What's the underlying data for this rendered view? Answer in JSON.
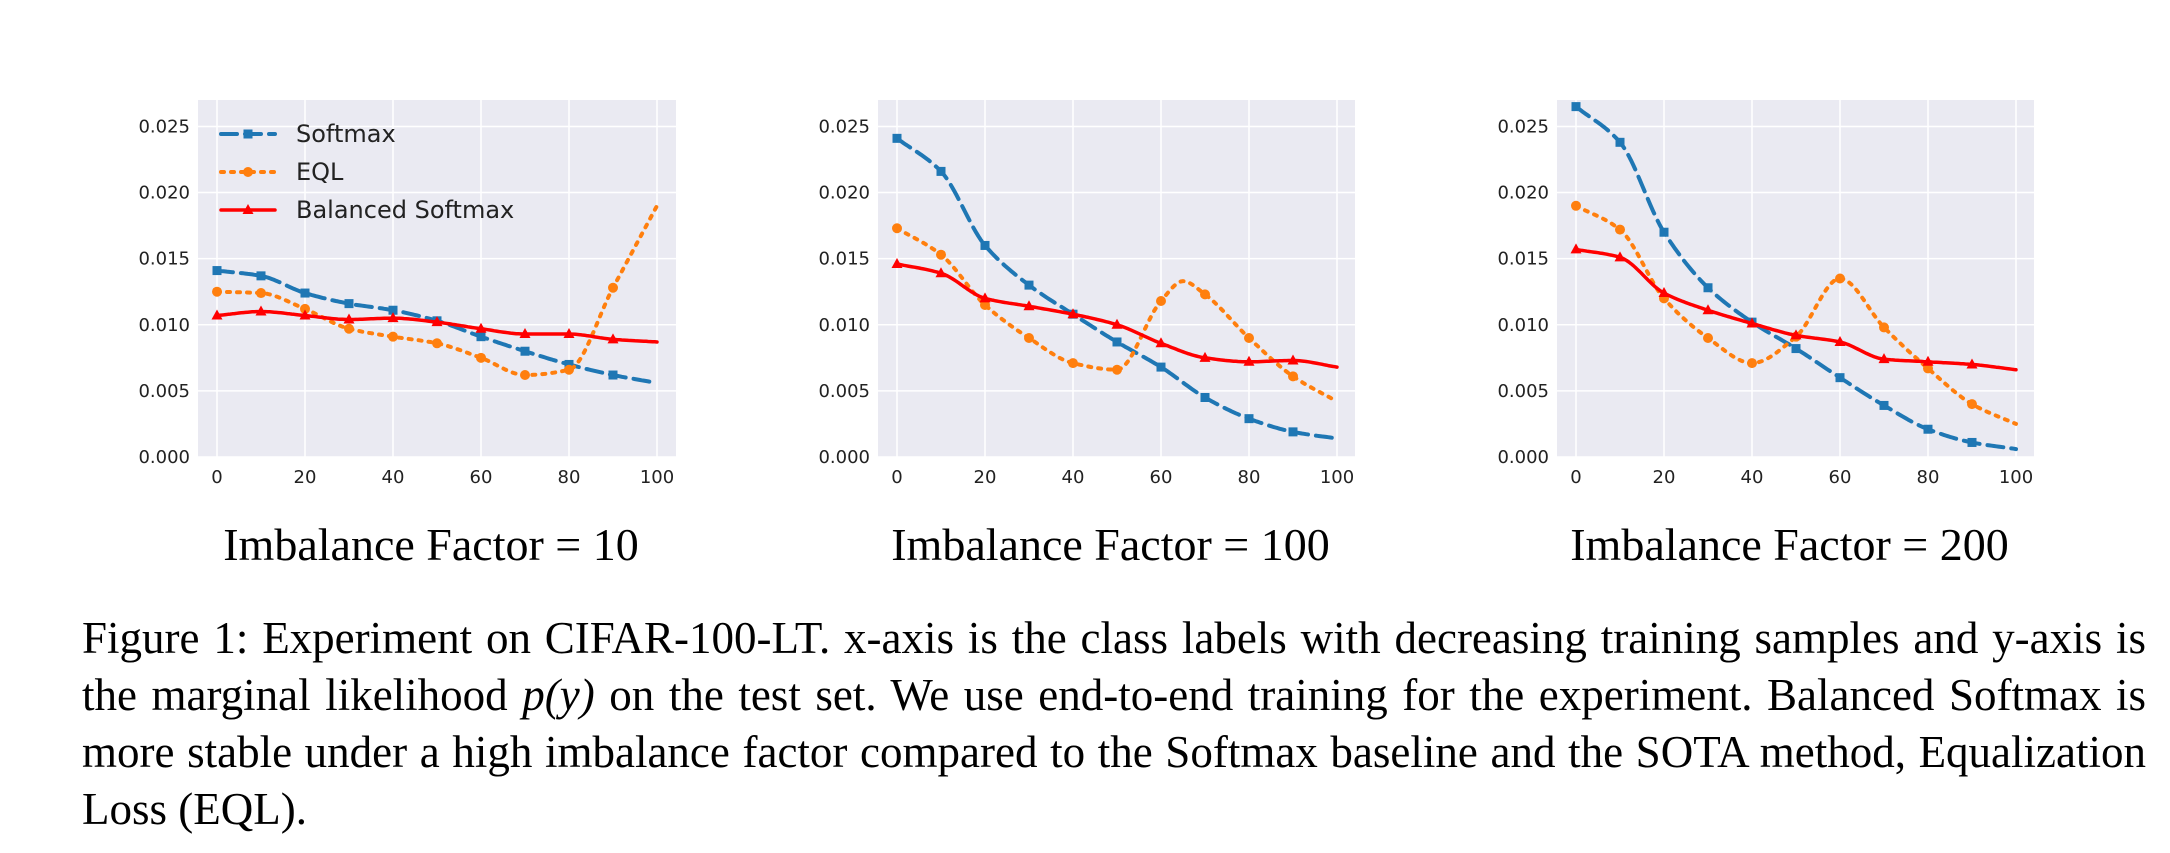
{
  "legend": [
    "Softmax",
    "EQL",
    "Balanced Softmax"
  ],
  "colors": {
    "softmax": "#1f77b4",
    "eql": "#ff7f0e",
    "balanced": "#ff0000",
    "plot_bg": "#eaeaf2",
    "grid": "#ffffff"
  },
  "chart_data": [
    {
      "type": "line",
      "title": "Imbalance Factor = 10",
      "xlabel": "",
      "ylabel": "",
      "xlim": [
        0,
        100
      ],
      "ylim": [
        0,
        0.027
      ],
      "xticks": [
        "0",
        "20",
        "40",
        "60",
        "80",
        "100"
      ],
      "yticks": [
        "0.000",
        "0.005",
        "0.010",
        "0.015",
        "0.020",
        "0.025"
      ],
      "grid": true,
      "legend_position": "top-left",
      "marker_x": [
        0,
        10,
        20,
        30,
        40,
        50,
        60,
        70,
        80,
        90
      ],
      "series": [
        {
          "name": "Softmax",
          "style": "dashed",
          "marker": "square",
          "x": [
            0,
            10,
            20,
            30,
            40,
            50,
            60,
            70,
            80,
            90,
            100
          ],
          "values": [
            0.0141,
            0.0137,
            0.0124,
            0.0116,
            0.0111,
            0.0103,
            0.0091,
            0.008,
            0.007,
            0.0062,
            0.0056
          ]
        },
        {
          "name": "EQL",
          "style": "dotted",
          "marker": "circle",
          "x": [
            0,
            10,
            20,
            30,
            40,
            50,
            60,
            70,
            80,
            90,
            100
          ],
          "values": [
            0.0125,
            0.0124,
            0.0112,
            0.0097,
            0.0091,
            0.0086,
            0.0075,
            0.0062,
            0.0066,
            0.0128,
            0.019
          ]
        },
        {
          "name": "Balanced Softmax",
          "style": "solid",
          "marker": "triangle",
          "x": [
            0,
            10,
            20,
            30,
            40,
            50,
            60,
            70,
            80,
            90,
            100
          ],
          "values": [
            0.0107,
            0.011,
            0.0107,
            0.0104,
            0.0105,
            0.0102,
            0.0097,
            0.0093,
            0.0093,
            0.0089,
            0.0087
          ]
        }
      ]
    },
    {
      "type": "line",
      "title": "Imbalance Factor = 100",
      "xlabel": "",
      "ylabel": "",
      "xlim": [
        0,
        100
      ],
      "ylim": [
        0,
        0.027
      ],
      "xticks": [
        "0",
        "20",
        "40",
        "60",
        "80",
        "100"
      ],
      "yticks": [
        "0.000",
        "0.005",
        "0.010",
        "0.015",
        "0.020",
        "0.025"
      ],
      "grid": true,
      "marker_x": [
        0,
        10,
        20,
        30,
        40,
        50,
        60,
        70,
        80,
        90
      ],
      "series": [
        {
          "name": "Softmax",
          "style": "dashed",
          "marker": "square",
          "x": [
            0,
            10,
            20,
            30,
            40,
            50,
            60,
            70,
            80,
            90,
            100
          ],
          "values": [
            0.0241,
            0.0216,
            0.016,
            0.013,
            0.0108,
            0.0087,
            0.0068,
            0.0045,
            0.0029,
            0.0019,
            0.0014
          ]
        },
        {
          "name": "EQL",
          "style": "dotted",
          "marker": "circle",
          "x": [
            0,
            10,
            20,
            30,
            40,
            50,
            60,
            65,
            70,
            80,
            90,
            100
          ],
          "values": [
            0.0173,
            0.0153,
            0.0115,
            0.009,
            0.0071,
            0.0066,
            0.0118,
            0.0133,
            0.0123,
            0.009,
            0.0061,
            0.0042
          ]
        },
        {
          "name": "Balanced Softmax",
          "style": "solid",
          "marker": "triangle",
          "x": [
            0,
            10,
            20,
            30,
            40,
            50,
            60,
            70,
            80,
            90,
            100
          ],
          "values": [
            0.0146,
            0.0139,
            0.012,
            0.0114,
            0.0108,
            0.01,
            0.0086,
            0.0075,
            0.0072,
            0.0073,
            0.0068
          ]
        }
      ]
    },
    {
      "type": "line",
      "title": "Imbalance Factor = 200",
      "xlabel": "",
      "ylabel": "",
      "xlim": [
        0,
        100
      ],
      "ylim": [
        0,
        0.027
      ],
      "xticks": [
        "0",
        "20",
        "40",
        "60",
        "80",
        "100"
      ],
      "yticks": [
        "0.000",
        "0.005",
        "0.010",
        "0.015",
        "0.020",
        "0.025"
      ],
      "grid": true,
      "marker_x": [
        0,
        10,
        20,
        30,
        40,
        50,
        60,
        70,
        80,
        90
      ],
      "series": [
        {
          "name": "Softmax",
          "style": "dashed",
          "marker": "square",
          "x": [
            0,
            10,
            20,
            30,
            40,
            50,
            60,
            70,
            80,
            90,
            100
          ],
          "values": [
            0.0265,
            0.0238,
            0.017,
            0.0128,
            0.0102,
            0.0082,
            0.006,
            0.0039,
            0.0021,
            0.0011,
            0.0006
          ]
        },
        {
          "name": "EQL",
          "style": "dotted",
          "marker": "circle",
          "x": [
            0,
            10,
            20,
            30,
            40,
            50,
            60,
            70,
            80,
            90,
            100
          ],
          "values": [
            0.019,
            0.0172,
            0.012,
            0.009,
            0.0071,
            0.0091,
            0.0135,
            0.0098,
            0.0067,
            0.004,
            0.0025
          ]
        },
        {
          "name": "Balanced Softmax",
          "style": "solid",
          "marker": "triangle",
          "x": [
            0,
            10,
            20,
            30,
            40,
            50,
            60,
            70,
            80,
            90,
            100
          ],
          "values": [
            0.0157,
            0.0151,
            0.0124,
            0.0111,
            0.0101,
            0.0092,
            0.0087,
            0.0074,
            0.0072,
            0.007,
            0.0066
          ]
        }
      ]
    }
  ],
  "caption": {
    "label": "Figure 1:",
    "part1": "Experiment on CIFAR-100-LT. x-axis is the class labels with decreasing training samples and y-axis is the marginal likelihood",
    "math": "p(y)",
    "part2": "on the test set. We use end-to-end training for the experiment. Balanced Softmax is more stable under a high imbalance factor compared to the Softmax baseline and the SOTA method, Equalization Loss (EQL)."
  }
}
